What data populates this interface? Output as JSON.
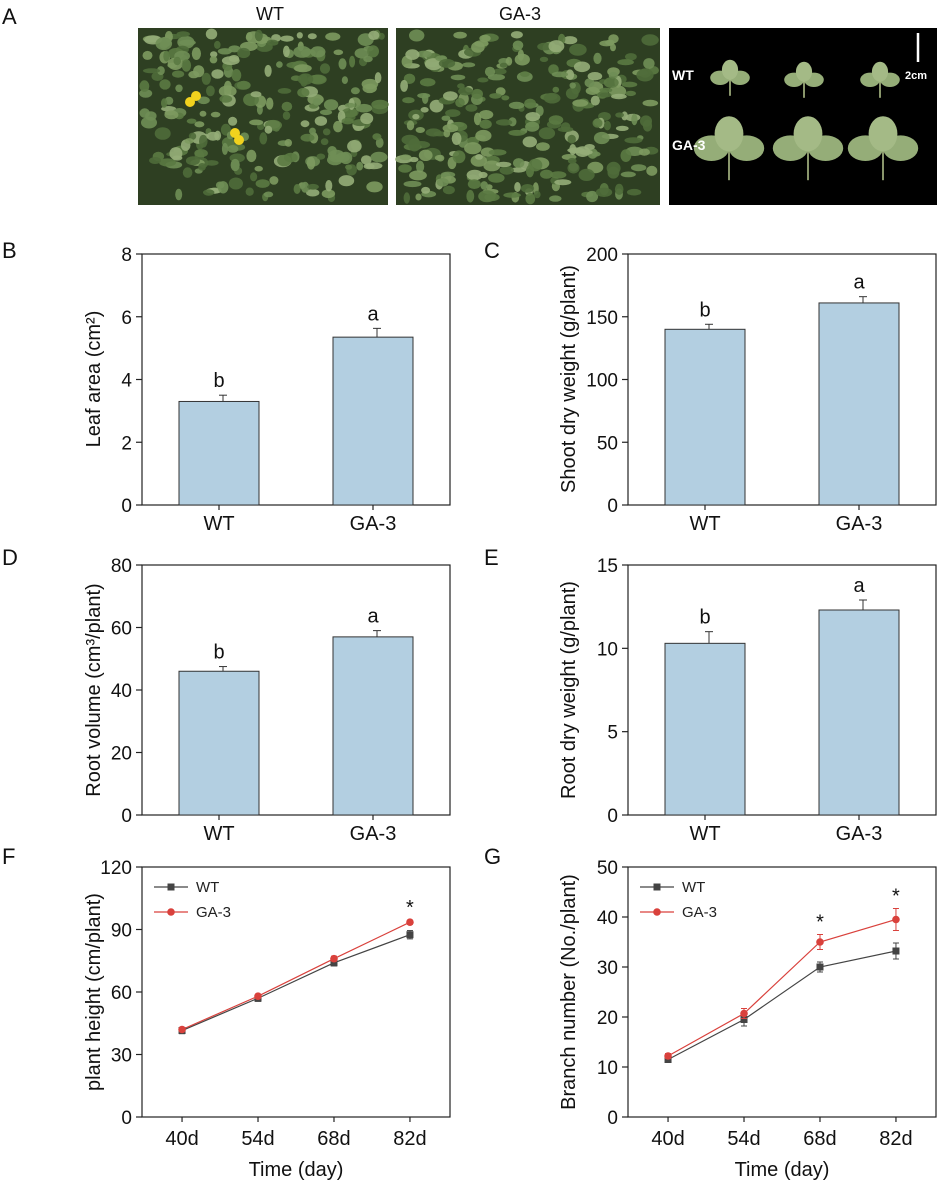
{
  "panel_a": {
    "letter": "A",
    "photo_titles": [
      "WT",
      "GA-3"
    ],
    "leaf_labels": [
      "WT",
      "GA-3"
    ],
    "scale_bar_label": "2cm"
  },
  "colors": {
    "bar_fill": "#b3cfe1",
    "bar_stroke": "#333333",
    "wt_line": "#444444",
    "ga3_line": "#d9413c",
    "foliage_dark": "#2e3f22",
    "foliage_mid": "#6f8e55",
    "leaf_light": "#95ad78",
    "flower": "#f1d21e",
    "photo_bg": "#000000"
  },
  "chart_data": [
    {
      "panel": "B",
      "type": "bar",
      "categories": [
        "WT",
        "GA-3"
      ],
      "values": [
        3.3,
        5.35
      ],
      "errors": [
        0.2,
        0.28
      ],
      "significance": [
        "b",
        "a"
      ],
      "ylabel": "Leaf area (cm²)",
      "xlabel": "",
      "ylim": [
        0,
        8
      ],
      "yticks": [
        0,
        2,
        4,
        6,
        8
      ]
    },
    {
      "panel": "C",
      "type": "bar",
      "categories": [
        "WT",
        "GA-3"
      ],
      "values": [
        140,
        161
      ],
      "errors": [
        4,
        5
      ],
      "significance": [
        "b",
        "a"
      ],
      "ylabel": "Shoot dry weight (g/plant)",
      "xlabel": "",
      "ylim": [
        0,
        200
      ],
      "yticks": [
        0,
        50,
        100,
        150,
        200
      ]
    },
    {
      "panel": "D",
      "type": "bar",
      "categories": [
        "WT",
        "GA-3"
      ],
      "values": [
        46,
        57
      ],
      "errors": [
        1.5,
        2
      ],
      "significance": [
        "b",
        "a"
      ],
      "ylabel": "Root volume (cm³/plant)",
      "xlabel": "",
      "ylim": [
        0,
        80
      ],
      "yticks": [
        0,
        20,
        40,
        60,
        80
      ]
    },
    {
      "panel": "E",
      "type": "bar",
      "categories": [
        "WT",
        "GA-3"
      ],
      "values": [
        10.3,
        12.3
      ],
      "errors": [
        0.7,
        0.6
      ],
      "significance": [
        "b",
        "a"
      ],
      "ylabel": "Root dry weight (g/plant)",
      "xlabel": "",
      "ylim": [
        0,
        15
      ],
      "yticks": [
        0,
        5,
        10,
        15
      ]
    },
    {
      "panel": "F",
      "type": "line",
      "x": [
        "40d",
        "54d",
        "68d",
        "82d"
      ],
      "series": [
        {
          "name": "WT",
          "values": [
            41.5,
            57,
            74,
            87.5
          ],
          "errors": [
            1.5,
            1.5,
            1.5,
            2
          ]
        },
        {
          "name": "GA-3",
          "values": [
            42,
            58,
            76,
            93.5
          ],
          "errors": [
            1,
            1,
            1.2,
            1
          ]
        }
      ],
      "significance": [
        "",
        "",
        "",
        "*"
      ],
      "xlabel": "Time (day)",
      "ylabel": "plant height (cm/plant)",
      "ylim": [
        0,
        120
      ],
      "yticks": [
        0,
        30,
        60,
        90,
        120
      ],
      "legend": "top-left"
    },
    {
      "panel": "G",
      "type": "line",
      "x": [
        "40d",
        "54d",
        "68d",
        "82d"
      ],
      "series": [
        {
          "name": "WT",
          "values": [
            11.5,
            19.5,
            30,
            33.2
          ],
          "errors": [
            0.5,
            1.3,
            1,
            1.6
          ]
        },
        {
          "name": "GA-3",
          "values": [
            12.2,
            20.7,
            35,
            39.5
          ],
          "errors": [
            0.5,
            1,
            1.5,
            2.2
          ]
        }
      ],
      "significance": [
        "",
        "",
        "*",
        "*"
      ],
      "xlabel": "Time (day)",
      "ylabel": "Branch number (No./plant)",
      "ylim": [
        0,
        50
      ],
      "yticks": [
        0,
        10,
        20,
        30,
        40,
        50
      ],
      "legend": "top-left"
    }
  ]
}
